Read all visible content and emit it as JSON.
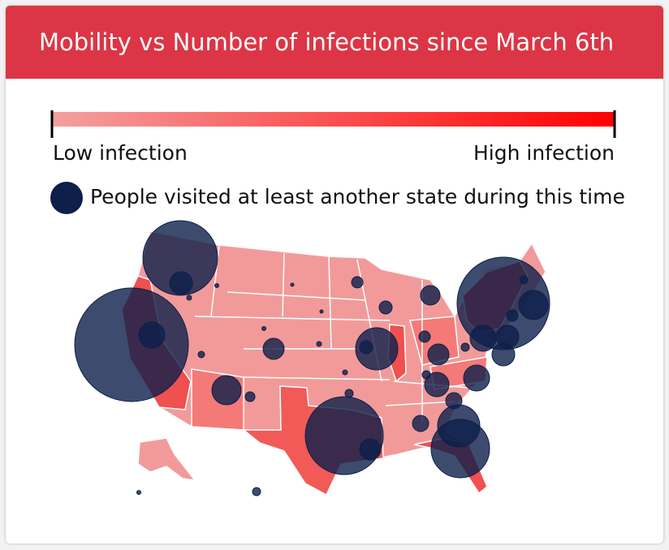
{
  "header": {
    "title": "Mobility vs Number of infections since March 6th"
  },
  "legend": {
    "low_label": "Low infection",
    "high_label": "High infection",
    "circle_label": "People visited at least another state during this time"
  }
}
